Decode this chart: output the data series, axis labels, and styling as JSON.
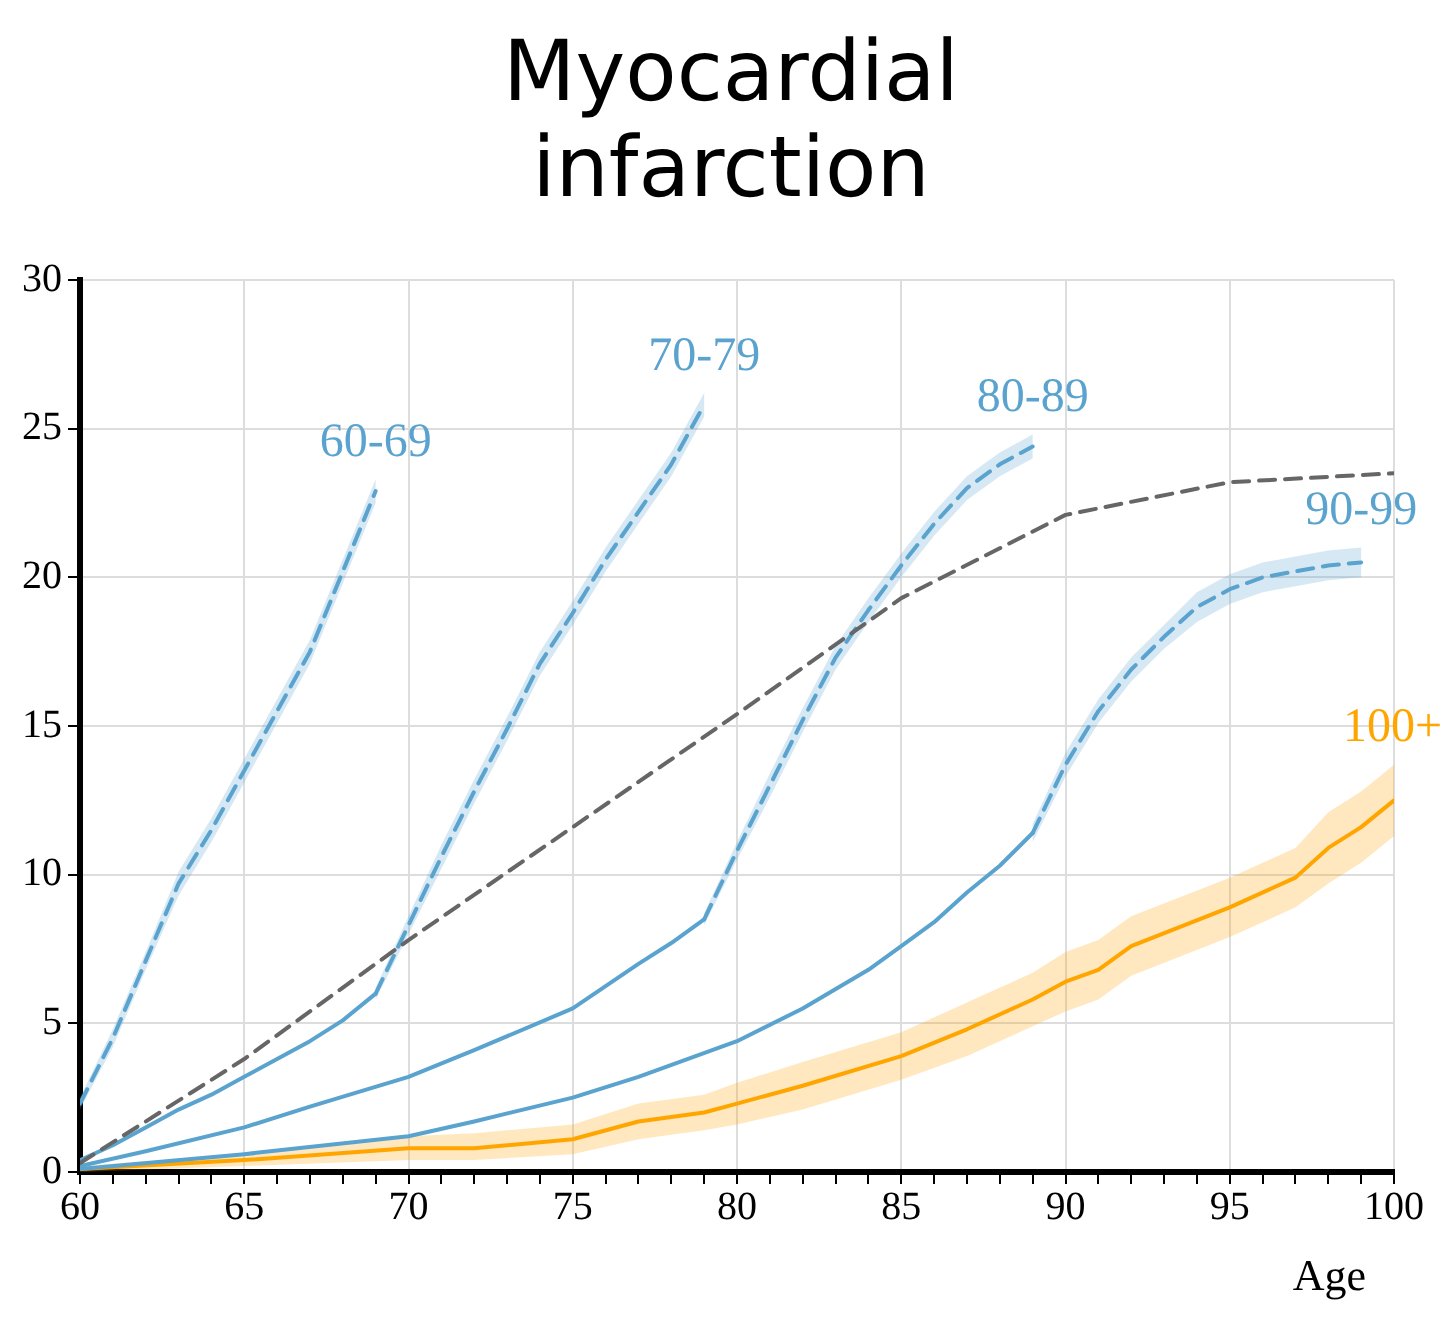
{
  "chart_data": {
    "type": "line",
    "title": "Myocardial infarction",
    "xlabel": "Age",
    "xlim": [
      60,
      100
    ],
    "ylim": [
      0,
      30
    ],
    "xticks": [
      60,
      {
        "value": 61,
        "label": null
      },
      {
        "value": 62,
        "label": null
      },
      {
        "value": 63,
        "label": null
      },
      {
        "value": 64,
        "label": null
      },
      65,
      {
        "value": 66,
        "label": null
      },
      {
        "value": 67,
        "label": null
      },
      {
        "value": 68,
        "label": null
      },
      {
        "value": 69,
        "label": null
      },
      70,
      {
        "value": 71,
        "label": null
      },
      {
        "value": 72,
        "label": null
      },
      {
        "value": 73,
        "label": null
      },
      {
        "value": 74,
        "label": null
      },
      75,
      {
        "value": 76,
        "label": null
      },
      {
        "value": 77,
        "label": null
      },
      {
        "value": 78,
        "label": null
      },
      {
        "value": 79,
        "label": null
      },
      80,
      {
        "value": 81,
        "label": null
      },
      {
        "value": 82,
        "label": null
      },
      {
        "value": 83,
        "label": null
      },
      {
        "value": 84,
        "label": null
      },
      85,
      {
        "value": 86,
        "label": null
      },
      {
        "value": 87,
        "label": null
      },
      {
        "value": 88,
        "label": null
      },
      {
        "value": 89,
        "label": null
      },
      90,
      {
        "value": 91,
        "label": null
      },
      {
        "value": 92,
        "label": null
      },
      {
        "value": 93,
        "label": null
      },
      {
        "value": 94,
        "label": null
      },
      95,
      {
        "value": 96,
        "label": null
      },
      {
        "value": 97,
        "label": null
      },
      {
        "value": 98,
        "label": null
      },
      {
        "value": 99,
        "label": null
      },
      100
    ],
    "yticks": [
      0,
      5,
      10,
      15,
      20,
      25,
      30
    ],
    "grid": true,
    "legend": false,
    "marker": "none",
    "series": [
      {
        "color": "#666666",
        "line_style": "dashed",
        "x": [
          60,
          65,
          70,
          75,
          80,
          85,
          90,
          95,
          100
        ],
        "values": [
          0.3,
          3.8,
          7.8,
          11.6,
          15.4,
          19.3,
          22.1,
          23.2,
          23.5
        ]
      },
      {
        "name": "60-69",
        "color": "#5aa3cf",
        "line_style": "dashed",
        "x": [
          60,
          61,
          62,
          63,
          64,
          65,
          66,
          67,
          68,
          69
        ],
        "values": [
          2.3,
          4.5,
          7.1,
          9.7,
          11.5,
          13.5,
          15.5,
          17.5,
          20.2,
          22.9
        ],
        "lower": [
          2.1,
          4.2,
          6.8,
          9.3,
          11.1,
          13.1,
          15.1,
          17.1,
          19.8,
          22.5
        ],
        "upper": [
          2.5,
          4.8,
          7.4,
          10.1,
          11.9,
          13.9,
          15.9,
          17.9,
          20.6,
          23.3
        ]
      },
      {
        "color": "#5aa3cf",
        "line_style": "solid",
        "x": [
          60,
          61,
          62,
          63,
          64,
          65,
          66,
          67,
          68,
          69
        ],
        "values": [
          0.4,
          0.9,
          1.5,
          2.1,
          2.6,
          3.2,
          3.8,
          4.4,
          5.1,
          6.0
        ]
      },
      {
        "name": "70-79",
        "color": "#5aa3cf",
        "line_style": "dashed",
        "x": [
          69,
          70,
          71,
          72,
          73,
          74,
          75,
          76,
          77,
          78,
          79
        ],
        "values": [
          6.0,
          8.3,
          10.6,
          12.8,
          14.9,
          17.1,
          18.8,
          20.6,
          22.2,
          23.8,
          25.8
        ],
        "lower": [
          5.8,
          8.0,
          10.2,
          12.4,
          14.5,
          16.7,
          18.4,
          20.2,
          21.8,
          23.4,
          25.4
        ],
        "upper": [
          6.2,
          8.6,
          11.0,
          13.2,
          15.3,
          17.5,
          19.2,
          21.0,
          22.6,
          24.2,
          26.2
        ]
      },
      {
        "color": "#5aa3cf",
        "line_style": "solid",
        "x": [
          60,
          62,
          65,
          67,
          70,
          72,
          75,
          77,
          78,
          79
        ],
        "values": [
          0.2,
          0.7,
          1.5,
          2.2,
          3.2,
          4.1,
          5.5,
          7.0,
          7.7,
          8.5
        ]
      },
      {
        "name": "80-89",
        "color": "#5aa3cf",
        "line_style": "dashed",
        "x": [
          79,
          80,
          81,
          82,
          83,
          84,
          85,
          86,
          87,
          88,
          89
        ],
        "values": [
          8.5,
          10.8,
          13.0,
          15.2,
          17.3,
          18.9,
          20.4,
          21.8,
          23.0,
          23.8,
          24.4
        ],
        "lower": [
          8.3,
          10.5,
          12.6,
          14.8,
          16.9,
          18.5,
          20.0,
          21.4,
          22.6,
          23.4,
          24.0
        ],
        "upper": [
          8.7,
          11.1,
          13.4,
          15.6,
          17.7,
          19.3,
          20.8,
          22.2,
          23.4,
          24.2,
          24.8
        ]
      },
      {
        "color": "#5aa3cf",
        "line_style": "solid",
        "x": [
          60,
          65,
          70,
          72,
          75,
          77,
          80,
          82,
          84,
          85,
          86,
          87,
          88,
          89
        ],
        "values": [
          0.1,
          0.6,
          1.2,
          1.7,
          2.5,
          3.2,
          4.4,
          5.5,
          6.8,
          7.6,
          8.4,
          9.4,
          10.3,
          11.4
        ]
      },
      {
        "name": "90-99",
        "color": "#5aa3cf",
        "line_style": "dashed",
        "x": [
          89,
          90,
          91,
          92,
          93,
          94,
          95,
          96,
          97,
          98,
          99
        ],
        "values": [
          11.4,
          13.7,
          15.5,
          16.9,
          18.0,
          19.0,
          19.6,
          20.0,
          20.2,
          20.4,
          20.5
        ],
        "lower": [
          11.1,
          13.3,
          15.1,
          16.5,
          17.6,
          18.5,
          19.1,
          19.5,
          19.7,
          19.9,
          20.0
        ],
        "upper": [
          11.7,
          14.1,
          15.9,
          17.3,
          18.4,
          19.5,
          20.1,
          20.5,
          20.7,
          20.9,
          21.0
        ]
      },
      {
        "name": "100+",
        "color": "#ffa500",
        "line_style": "solid",
        "x": [
          60,
          65,
          70,
          72,
          75,
          77,
          79,
          80,
          82,
          85,
          87,
          89,
          90,
          91,
          92,
          95,
          97,
          98,
          99,
          100
        ],
        "values": [
          0.1,
          0.4,
          0.8,
          0.8,
          1.1,
          1.7,
          2.0,
          2.3,
          2.9,
          3.9,
          4.8,
          5.8,
          6.4,
          6.8,
          7.6,
          8.9,
          9.9,
          10.9,
          11.6,
          12.5
        ],
        "lower": [
          0.0,
          0.2,
          0.4,
          0.4,
          0.6,
          1.1,
          1.4,
          1.6,
          2.1,
          3.1,
          3.9,
          4.9,
          5.4,
          5.8,
          6.6,
          7.9,
          8.9,
          9.7,
          10.4,
          11.3
        ],
        "upper": [
          0.2,
          0.6,
          1.2,
          1.3,
          1.6,
          2.3,
          2.6,
          3.0,
          3.7,
          4.7,
          5.7,
          6.7,
          7.4,
          7.8,
          8.6,
          9.9,
          10.9,
          12.1,
          12.8,
          13.7
        ]
      }
    ]
  }
}
